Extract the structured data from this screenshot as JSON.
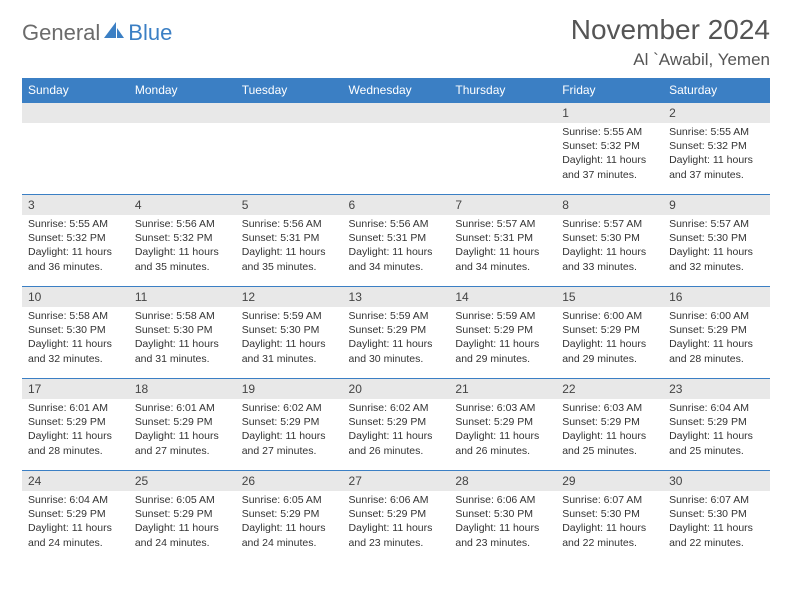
{
  "brand": {
    "part1": "General",
    "part2": "Blue"
  },
  "title": "November 2024",
  "location": "Al `Awabil, Yemen",
  "colors": {
    "header_bg": "#3b7fc4",
    "header_text": "#ffffff",
    "daynum_bg": "#e8e8e8",
    "row_border": "#3b7fc4",
    "logo_gray": "#6b6b6b",
    "logo_blue": "#3b7fc4",
    "text": "#333333",
    "title_color": "#555555"
  },
  "weekdays": [
    "Sunday",
    "Monday",
    "Tuesday",
    "Wednesday",
    "Thursday",
    "Friday",
    "Saturday"
  ],
  "first_weekday_index": 5,
  "days": [
    {
      "n": 1,
      "sunrise": "5:55 AM",
      "sunset": "5:32 PM",
      "daylight": "11 hours and 37 minutes."
    },
    {
      "n": 2,
      "sunrise": "5:55 AM",
      "sunset": "5:32 PM",
      "daylight": "11 hours and 37 minutes."
    },
    {
      "n": 3,
      "sunrise": "5:55 AM",
      "sunset": "5:32 PM",
      "daylight": "11 hours and 36 minutes."
    },
    {
      "n": 4,
      "sunrise": "5:56 AM",
      "sunset": "5:32 PM",
      "daylight": "11 hours and 35 minutes."
    },
    {
      "n": 5,
      "sunrise": "5:56 AM",
      "sunset": "5:31 PM",
      "daylight": "11 hours and 35 minutes."
    },
    {
      "n": 6,
      "sunrise": "5:56 AM",
      "sunset": "5:31 PM",
      "daylight": "11 hours and 34 minutes."
    },
    {
      "n": 7,
      "sunrise": "5:57 AM",
      "sunset": "5:31 PM",
      "daylight": "11 hours and 34 minutes."
    },
    {
      "n": 8,
      "sunrise": "5:57 AM",
      "sunset": "5:30 PM",
      "daylight": "11 hours and 33 minutes."
    },
    {
      "n": 9,
      "sunrise": "5:57 AM",
      "sunset": "5:30 PM",
      "daylight": "11 hours and 32 minutes."
    },
    {
      "n": 10,
      "sunrise": "5:58 AM",
      "sunset": "5:30 PM",
      "daylight": "11 hours and 32 minutes."
    },
    {
      "n": 11,
      "sunrise": "5:58 AM",
      "sunset": "5:30 PM",
      "daylight": "11 hours and 31 minutes."
    },
    {
      "n": 12,
      "sunrise": "5:59 AM",
      "sunset": "5:30 PM",
      "daylight": "11 hours and 31 minutes."
    },
    {
      "n": 13,
      "sunrise": "5:59 AM",
      "sunset": "5:29 PM",
      "daylight": "11 hours and 30 minutes."
    },
    {
      "n": 14,
      "sunrise": "5:59 AM",
      "sunset": "5:29 PM",
      "daylight": "11 hours and 29 minutes."
    },
    {
      "n": 15,
      "sunrise": "6:00 AM",
      "sunset": "5:29 PM",
      "daylight": "11 hours and 29 minutes."
    },
    {
      "n": 16,
      "sunrise": "6:00 AM",
      "sunset": "5:29 PM",
      "daylight": "11 hours and 28 minutes."
    },
    {
      "n": 17,
      "sunrise": "6:01 AM",
      "sunset": "5:29 PM",
      "daylight": "11 hours and 28 minutes."
    },
    {
      "n": 18,
      "sunrise": "6:01 AM",
      "sunset": "5:29 PM",
      "daylight": "11 hours and 27 minutes."
    },
    {
      "n": 19,
      "sunrise": "6:02 AM",
      "sunset": "5:29 PM",
      "daylight": "11 hours and 27 minutes."
    },
    {
      "n": 20,
      "sunrise": "6:02 AM",
      "sunset": "5:29 PM",
      "daylight": "11 hours and 26 minutes."
    },
    {
      "n": 21,
      "sunrise": "6:03 AM",
      "sunset": "5:29 PM",
      "daylight": "11 hours and 26 minutes."
    },
    {
      "n": 22,
      "sunrise": "6:03 AM",
      "sunset": "5:29 PM",
      "daylight": "11 hours and 25 minutes."
    },
    {
      "n": 23,
      "sunrise": "6:04 AM",
      "sunset": "5:29 PM",
      "daylight": "11 hours and 25 minutes."
    },
    {
      "n": 24,
      "sunrise": "6:04 AM",
      "sunset": "5:29 PM",
      "daylight": "11 hours and 24 minutes."
    },
    {
      "n": 25,
      "sunrise": "6:05 AM",
      "sunset": "5:29 PM",
      "daylight": "11 hours and 24 minutes."
    },
    {
      "n": 26,
      "sunrise": "6:05 AM",
      "sunset": "5:29 PM",
      "daylight": "11 hours and 24 minutes."
    },
    {
      "n": 27,
      "sunrise": "6:06 AM",
      "sunset": "5:29 PM",
      "daylight": "11 hours and 23 minutes."
    },
    {
      "n": 28,
      "sunrise": "6:06 AM",
      "sunset": "5:30 PM",
      "daylight": "11 hours and 23 minutes."
    },
    {
      "n": 29,
      "sunrise": "6:07 AM",
      "sunset": "5:30 PM",
      "daylight": "11 hours and 22 minutes."
    },
    {
      "n": 30,
      "sunrise": "6:07 AM",
      "sunset": "5:30 PM",
      "daylight": "11 hours and 22 minutes."
    }
  ],
  "labels": {
    "sunrise": "Sunrise:",
    "sunset": "Sunset:",
    "daylight": "Daylight:"
  }
}
